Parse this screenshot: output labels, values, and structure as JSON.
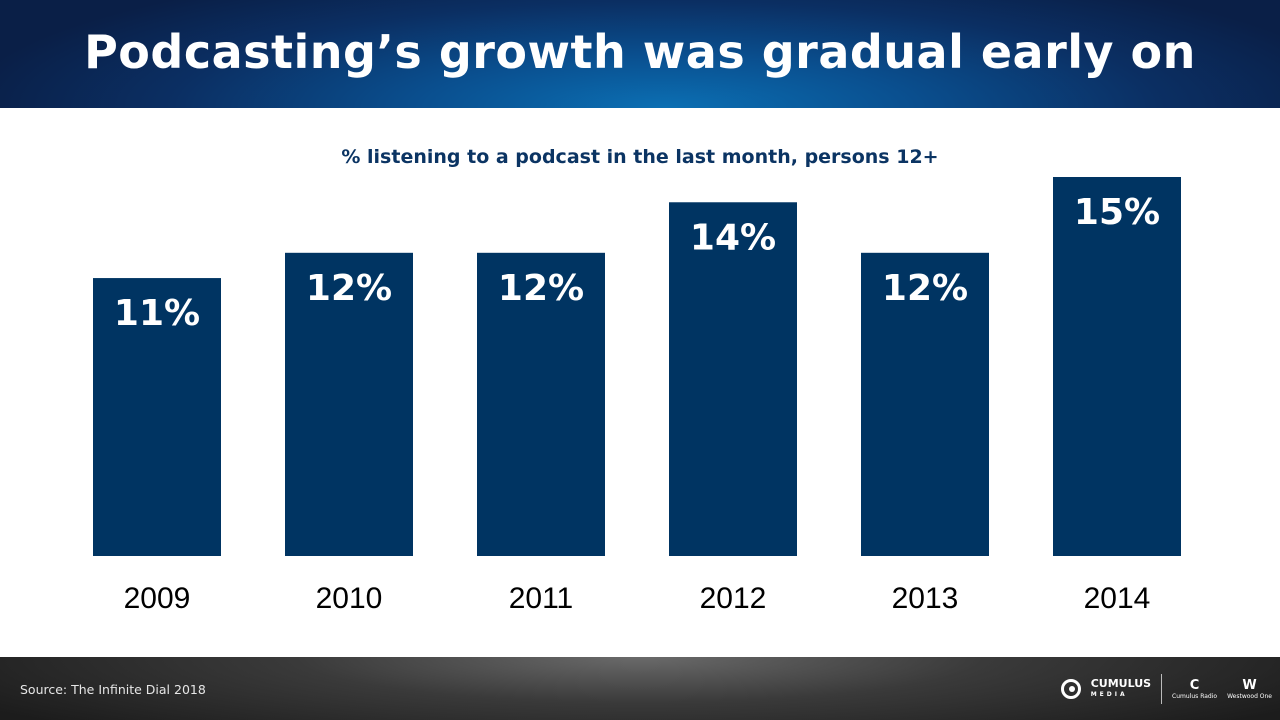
{
  "header": {
    "title": "Podcasting’s growth was gradual early on"
  },
  "chart_data": {
    "type": "bar",
    "title": "% listening to a podcast in the last month, persons 12+",
    "categories": [
      "2009",
      "2010",
      "2011",
      "2012",
      "2013",
      "2014"
    ],
    "values": [
      11,
      12,
      12,
      14,
      12,
      15
    ],
    "value_labels": [
      "11%",
      "12%",
      "12%",
      "14%",
      "12%",
      "15%"
    ],
    "ylim": [
      0,
      15
    ],
    "bar_color": "#003462",
    "grid": false,
    "legend": "none"
  },
  "footer": {
    "source": "Source: The Infinite Dial 2018",
    "logos": {
      "cumulus_name": "CUMULUS",
      "cumulus_sub": "MEDIA",
      "radio_network": "Cumulus Radio",
      "westwood": "Westwood One"
    }
  }
}
